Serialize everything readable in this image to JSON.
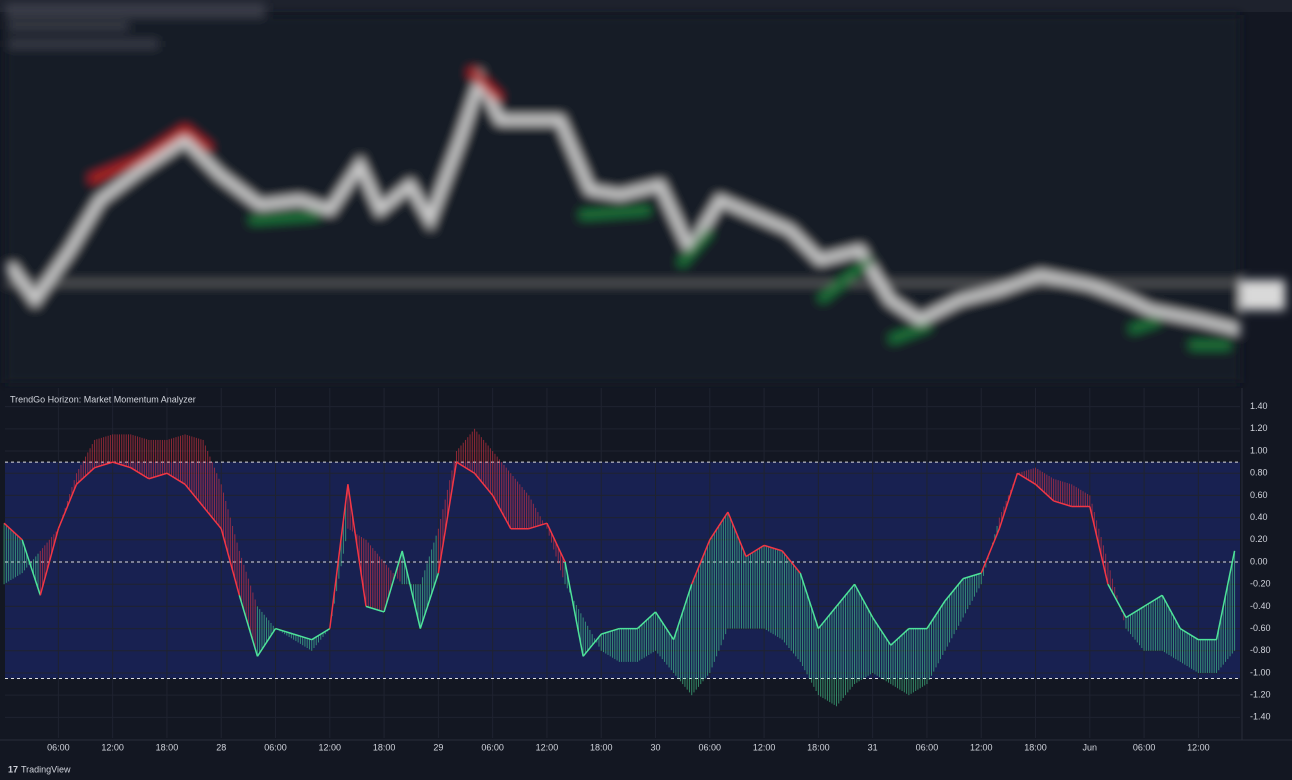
{
  "chart_data": {
    "type": "line",
    "title": "TrendGo Horizon: Market Momentum Analyzer",
    "brand": "TradingView",
    "x": [
      0,
      2,
      4,
      6,
      8,
      10,
      12,
      14,
      16,
      18,
      20,
      22,
      24,
      26,
      28,
      30,
      32,
      34,
      36,
      38,
      40,
      42,
      44,
      46,
      48,
      50,
      52,
      54,
      56,
      58,
      60,
      62,
      64,
      66,
      68,
      70,
      72,
      74,
      76,
      78,
      80,
      82,
      84,
      86,
      88,
      90,
      92,
      94,
      96,
      98,
      100,
      102,
      104,
      106,
      108,
      110,
      112,
      114,
      116,
      118,
      120,
      122,
      124,
      126,
      128,
      130,
      132,
      134,
      136
    ],
    "values": [
      0.35,
      0.2,
      -0.3,
      0.3,
      0.7,
      0.85,
      0.9,
      0.85,
      0.75,
      0.8,
      0.7,
      0.5,
      0.3,
      -0.3,
      -0.85,
      -0.6,
      -0.65,
      -0.7,
      -0.6,
      0.7,
      -0.4,
      -0.45,
      0.1,
      -0.6,
      -0.1,
      0.9,
      0.8,
      0.6,
      0.3,
      0.3,
      0.35,
      0.0,
      -0.85,
      -0.65,
      -0.6,
      -0.6,
      -0.45,
      -0.7,
      -0.2,
      0.2,
      0.45,
      0.05,
      0.15,
      0.1,
      -0.1,
      -0.6,
      -0.4,
      -0.2,
      -0.5,
      -0.75,
      -0.6,
      -0.6,
      -0.35,
      -0.15,
      -0.1,
      0.3,
      0.8,
      0.7,
      0.55,
      0.5,
      0.5,
      -0.2,
      -0.5,
      -0.4,
      -0.3,
      -0.6,
      -0.7,
      -0.7,
      0.1
    ],
    "envelope": [
      -0.2,
      -0.1,
      0.1,
      0.3,
      0.8,
      1.1,
      1.15,
      1.15,
      1.1,
      1.1,
      1.15,
      1.1,
      0.7,
      0.1,
      -0.4,
      -0.6,
      -0.7,
      -0.8,
      -0.6,
      0.3,
      0.2,
      0.0,
      -0.2,
      -0.2,
      0.3,
      1.0,
      1.2,
      1.0,
      0.8,
      0.6,
      0.3,
      -0.2,
      -0.5,
      -0.8,
      -0.9,
      -0.9,
      -0.8,
      -1.0,
      -1.2,
      -1.0,
      -0.6,
      -0.6,
      -0.6,
      -0.7,
      -0.9,
      -1.2,
      -1.3,
      -1.1,
      -1.0,
      -1.1,
      -1.2,
      -1.1,
      -0.8,
      -0.5,
      -0.2,
      0.4,
      0.8,
      0.85,
      0.75,
      0.7,
      0.6,
      0.0,
      -0.6,
      -0.8,
      -0.8,
      -0.9,
      -1.0,
      -1.0,
      -0.8
    ],
    "up_color": "#f23645",
    "down_color": "#4ee39a",
    "levels": [
      0.9,
      0,
      -1.05
    ],
    "band_color": "#1a2359",
    "xlim": [
      0.1,
      136.6
    ],
    "ylim": [
      -1.586,
      1.568
    ],
    "xticks": [
      {
        "value": 6,
        "label": "06:00"
      },
      {
        "value": 12,
        "label": "12:00"
      },
      {
        "value": 18,
        "label": "18:00"
      },
      {
        "value": 24,
        "label": "28"
      },
      {
        "value": 30,
        "label": "06:00"
      },
      {
        "value": 36,
        "label": "12:00"
      },
      {
        "value": 42,
        "label": "18:00"
      },
      {
        "value": 48,
        "label": "29"
      },
      {
        "value": 54,
        "label": "06:00"
      },
      {
        "value": 60,
        "label": "12:00"
      },
      {
        "value": 66,
        "label": "18:00"
      },
      {
        "value": 72,
        "label": "30"
      },
      {
        "value": 78,
        "label": "06:00"
      },
      {
        "value": 84,
        "label": "12:00"
      },
      {
        "value": 90,
        "label": "18:00"
      },
      {
        "value": 96,
        "label": "31"
      },
      {
        "value": 102,
        "label": "06:00"
      },
      {
        "value": 108,
        "label": "12:00"
      },
      {
        "value": 114,
        "label": "18:00"
      },
      {
        "value": 120,
        "label": "Jun"
      },
      {
        "value": 126,
        "label": "06:00"
      },
      {
        "value": 132,
        "label": "12:00"
      }
    ],
    "yticks": [
      {
        "value": 1.4,
        "label": "1.40"
      },
      {
        "value": 1.2,
        "label": "1.20"
      },
      {
        "value": 1.0,
        "label": "1.00"
      },
      {
        "value": 0.8,
        "label": "0.80"
      },
      {
        "value": 0.6,
        "label": "0.60"
      },
      {
        "value": 0.4,
        "label": "0.40"
      },
      {
        "value": 0.2,
        "label": "0.20"
      },
      {
        "value": 0,
        "label": "0.00"
      },
      {
        "value": -0.2,
        "label": "-0.20"
      },
      {
        "value": -0.4,
        "label": "-0.40"
      },
      {
        "value": -0.6,
        "label": "-0.60"
      },
      {
        "value": -0.8,
        "label": "-0.80"
      },
      {
        "value": -1.0,
        "label": "-1.00"
      },
      {
        "value": -1.2,
        "label": "-1.20"
      },
      {
        "value": -1.4,
        "label": "-1.40"
      }
    ],
    "grid": true
  }
}
